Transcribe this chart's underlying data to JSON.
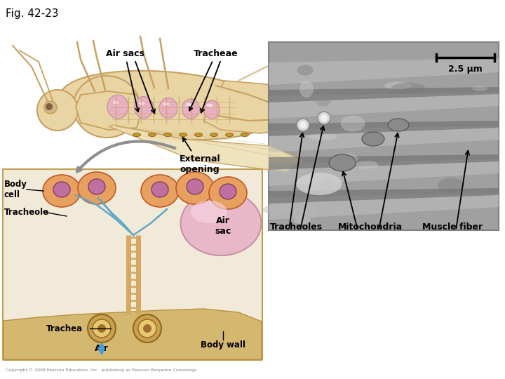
{
  "title": "Fig. 42-23",
  "bg_color": "#ffffff",
  "fig_label_fontsize": 11,
  "labels": {
    "air_sacs": "Air sacs",
    "tracheae": "Tracheae",
    "external_opening": "External\nopening",
    "tracheoles": "Tracheoles",
    "mitochondria": "Mitochondria",
    "muscle_fiber": "Muscle fiber",
    "body_cell": "Body\ncell",
    "tracheole": "Tracheole",
    "air_sac": "Air\nsac",
    "trachea": "Trachea",
    "air": "Air",
    "body_wall": "Body wall",
    "scale": "2.5 μm",
    "copyright": "Copyright © 2008 Pearson Education, Inc., publishing as Pearson Benjamin Cummings."
  },
  "gc": "#e8d5a3",
  "go": "#c8a060",
  "pink": "#e8b0c0",
  "tc": "#c8a060",
  "bc_orange": "#e8a060",
  "bc_nuc": "#c070a0",
  "tc_blue": "#60a8c8",
  "trachea_tube": "#d4a860",
  "gray_arrow": "#909090",
  "blue_arrow": "#40a0e0"
}
